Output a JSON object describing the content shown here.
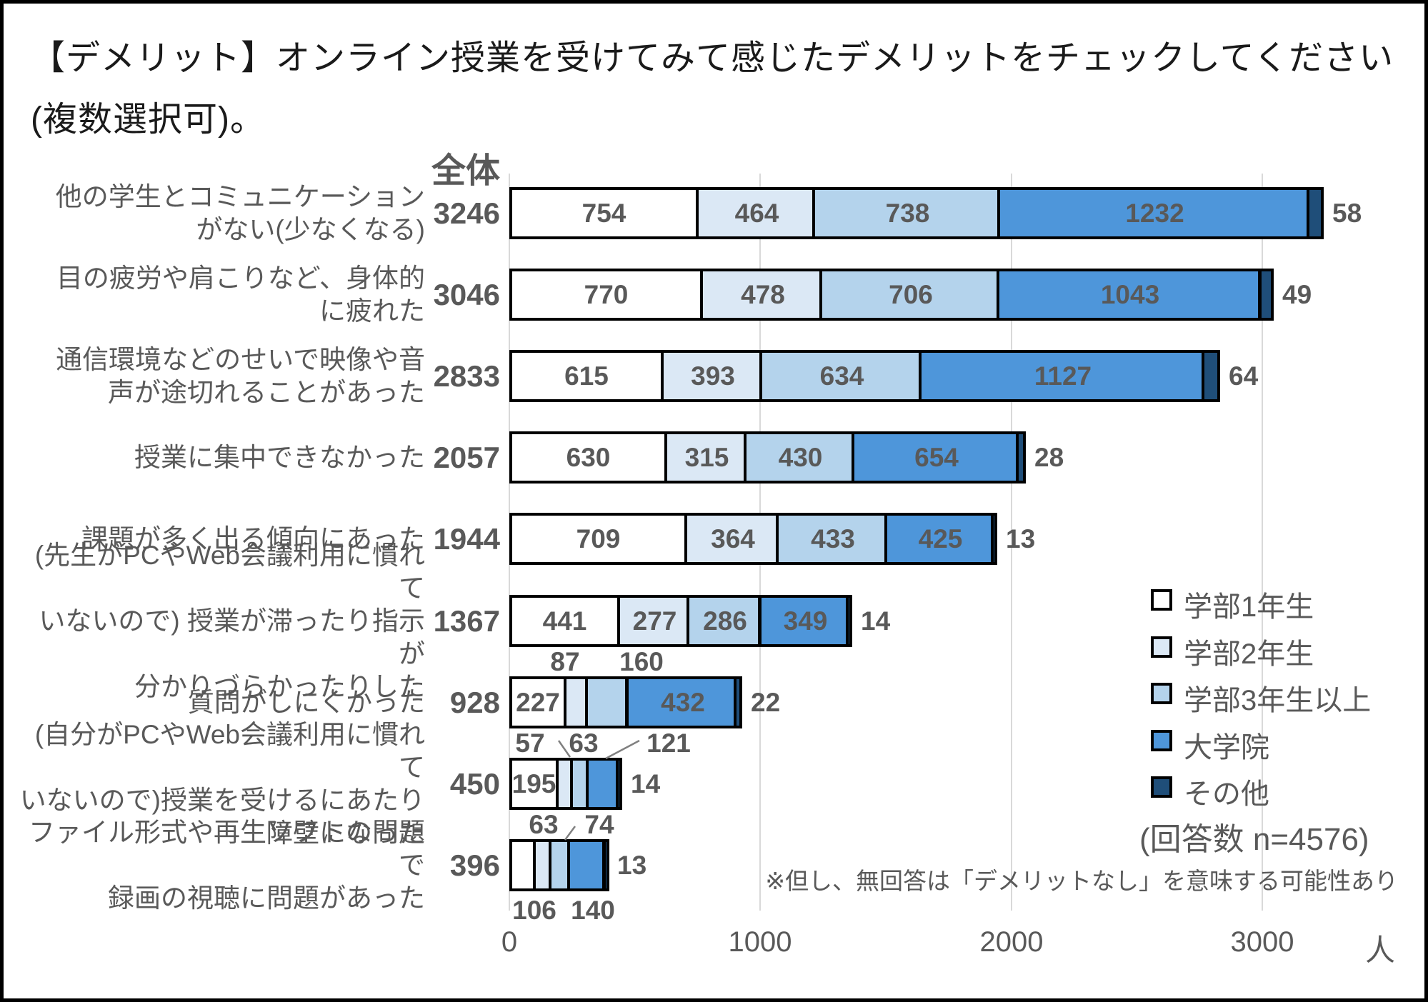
{
  "title": {
    "line1": "【デメリット】オンライン授業を受けてみて感じたデメリットをチェックしてください",
    "line2": "(複数選択可)。"
  },
  "chart_data": {
    "type": "bar",
    "orientation": "horizontal",
    "stacked": true,
    "title": "【デメリット】オンライン授業を受けてみて感じたデメリットをチェックしてください(複数選択可)。",
    "overall_column_header": "全体",
    "x_axis": {
      "tick_values": [
        0,
        1000,
        2000,
        3000
      ],
      "tick_labels": [
        "0",
        "1000",
        "2000",
        "3000"
      ],
      "max": 3000,
      "unit_label": "人"
    },
    "series": [
      {
        "name": "学部1年生",
        "color": "#FFFFFF"
      },
      {
        "name": "学部2年生",
        "color": "#DBE8F5"
      },
      {
        "name": "学部3年生以上",
        "color": "#B4D3EC"
      },
      {
        "name": "大学院",
        "color": "#4E96DA"
      },
      {
        "name": "その他",
        "color": "#1F4E79"
      }
    ],
    "rows": [
      {
        "label_lines": [
          "他の学生とコミュニケーション",
          "がない(少なくなる)"
        ],
        "total": 3246,
        "values": [
          754,
          464,
          738,
          1232,
          58
        ]
      },
      {
        "label_lines": [
          "目の疲労や肩こりなど、身体的",
          "に疲れた"
        ],
        "total": 3046,
        "values": [
          770,
          478,
          706,
          1043,
          49
        ]
      },
      {
        "label_lines": [
          "通信環境などのせいで映像や音",
          "声が途切れることがあった"
        ],
        "total": 2833,
        "values": [
          615,
          393,
          634,
          1127,
          64
        ]
      },
      {
        "label_lines": [
          "授業に集中できなかった"
        ],
        "total": 2057,
        "values": [
          630,
          315,
          430,
          654,
          28
        ]
      },
      {
        "label_lines": [
          "課題が多く出る傾向にあった"
        ],
        "total": 1944,
        "values": [
          709,
          364,
          433,
          425,
          13
        ]
      },
      {
        "label_lines": [
          "(先生がPCやWeb会議利用に慣れて",
          "いないので) 授業が滞ったり指示が",
          "分かりづらかったりした"
        ],
        "total": 1367,
        "values": [
          441,
          277,
          286,
          349,
          14
        ]
      },
      {
        "label_lines": [
          "質問がしにくかった"
        ],
        "total": 928,
        "values": [
          227,
          87,
          160,
          432,
          22
        ]
      },
      {
        "label_lines": [
          "(自分がPCやWeb会議利用に慣れて",
          "いないので)授業を受けるにあたり",
          "障壁になった"
        ],
        "total": 450,
        "values": [
          195,
          57,
          63,
          121,
          14
        ]
      },
      {
        "label_lines": [
          "ファイル形式や再生ソフトの問題で",
          "録画の視聴に問題があった"
        ],
        "total": 396,
        "values": [
          106,
          63,
          74,
          140,
          13
        ]
      }
    ],
    "legend_note": "(回答数 n=4576)",
    "footnote": "※但し、無回答は「デメリットなし」を意味する可能性あり",
    "grid_color": "#D9D9D9",
    "value_text_color": "#595959"
  }
}
